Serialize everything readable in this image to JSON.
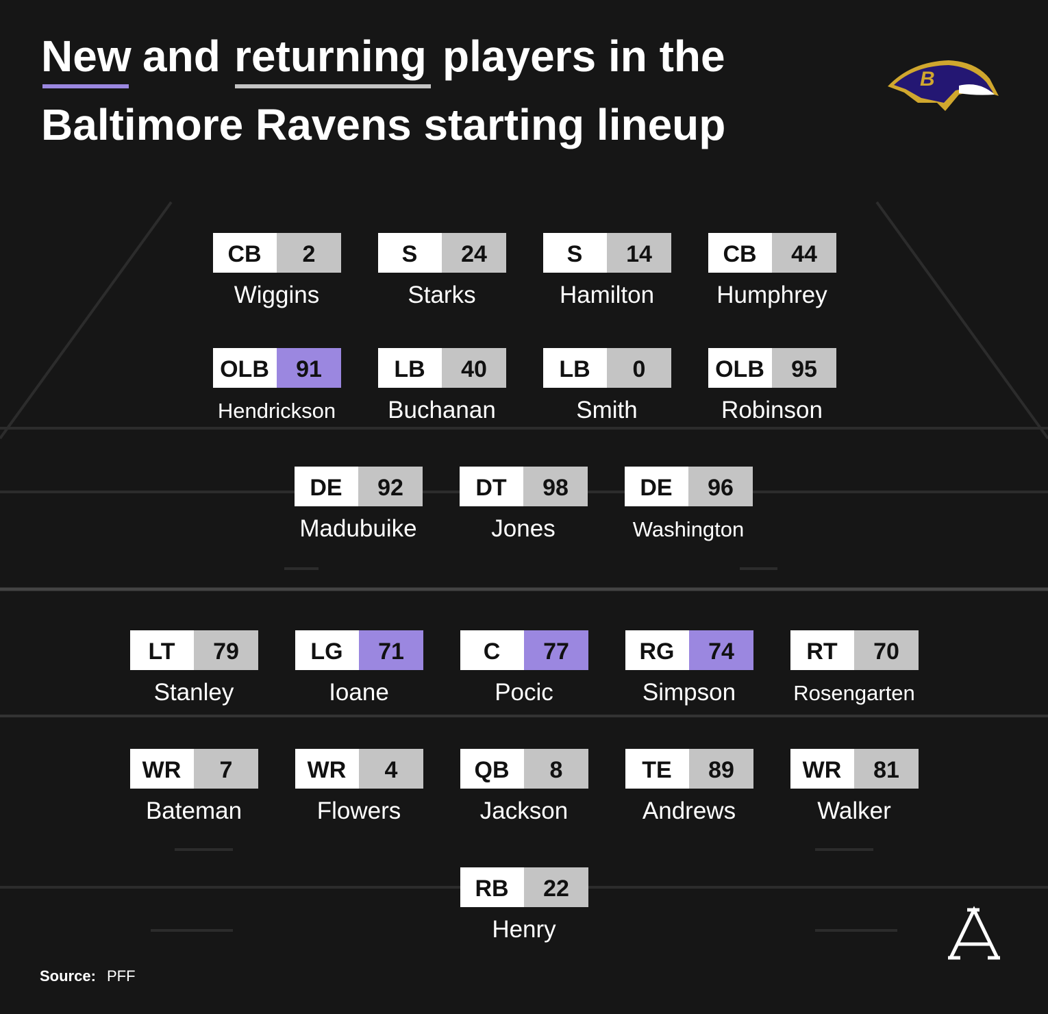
{
  "header": {
    "title_new": "New",
    "title_and": "and",
    "title_returning": "returning",
    "title_rest": "players in the",
    "title_line2": "Baltimore Ravens starting lineup",
    "new_color": "#9b87e0",
    "returning_color": "#c4c4c4"
  },
  "lineup": {
    "rows": [
      [
        {
          "position": "CB",
          "number": 2,
          "name": "Wiggins",
          "color": "#c4c4c4"
        },
        {
          "position": "S",
          "number": 24,
          "name": "Starks",
          "color": "#c4c4c4"
        },
        {
          "position": "S",
          "number": 14,
          "name": "Hamilton",
          "color": "#c4c4c4"
        },
        {
          "position": "CB",
          "number": 44,
          "name": "Humphrey",
          "color": "#c4c4c4"
        }
      ],
      [
        {
          "position": "OLB",
          "number": 91,
          "name": "Hendrickson",
          "color": "#9b87e0"
        },
        {
          "position": "LB",
          "number": 40,
          "name": "Buchanan",
          "color": "#c4c4c4"
        },
        {
          "position": "LB",
          "number": 0,
          "name": "Smith",
          "color": "#c4c4c4"
        },
        {
          "position": "OLB",
          "number": 95,
          "name": "Robinson",
          "color": "#c4c4c4"
        }
      ],
      [
        {
          "position": "DE",
          "number": 92,
          "name": "Madubuike",
          "color": "#c4c4c4"
        },
        {
          "position": "DT",
          "number": 98,
          "name": "Jones",
          "color": "#c4c4c4"
        },
        {
          "position": "DE",
          "number": 96,
          "name": "Washington",
          "color": "#c4c4c4"
        }
      ],
      [
        {
          "position": "LT",
          "number": 79,
          "name": "Stanley",
          "color": "#c4c4c4"
        },
        {
          "position": "LG",
          "number": 71,
          "name": "Ioane",
          "color": "#9b87e0"
        },
        {
          "position": "C",
          "number": 77,
          "name": "Pocic",
          "color": "#9b87e0"
        },
        {
          "position": "RG",
          "number": 74,
          "name": "Simpson",
          "color": "#9b87e0"
        },
        {
          "position": "RT",
          "number": 70,
          "name": "Rosengarten",
          "color": "#c4c4c4"
        }
      ],
      [
        {
          "position": "WR",
          "number": 7,
          "name": "Bateman",
          "color": "#c4c4c4"
        },
        {
          "position": "WR",
          "number": 4,
          "name": "Flowers",
          "color": "#c4c4c4"
        },
        {
          "position": "QB",
          "number": 8,
          "name": "Jackson",
          "color": "#c4c4c4"
        },
        {
          "position": "TE",
          "number": 89,
          "name": "Andrews",
          "color": "#c4c4c4"
        },
        {
          "position": "WR",
          "number": 81,
          "name": "Walker",
          "color": "#c4c4c4"
        }
      ],
      [
        {
          "position": "RB",
          "number": 22,
          "name": "Henry",
          "color": "#c4c4c4"
        }
      ]
    ]
  },
  "footer": {
    "source_label": "Source:",
    "source": "PFF"
  }
}
